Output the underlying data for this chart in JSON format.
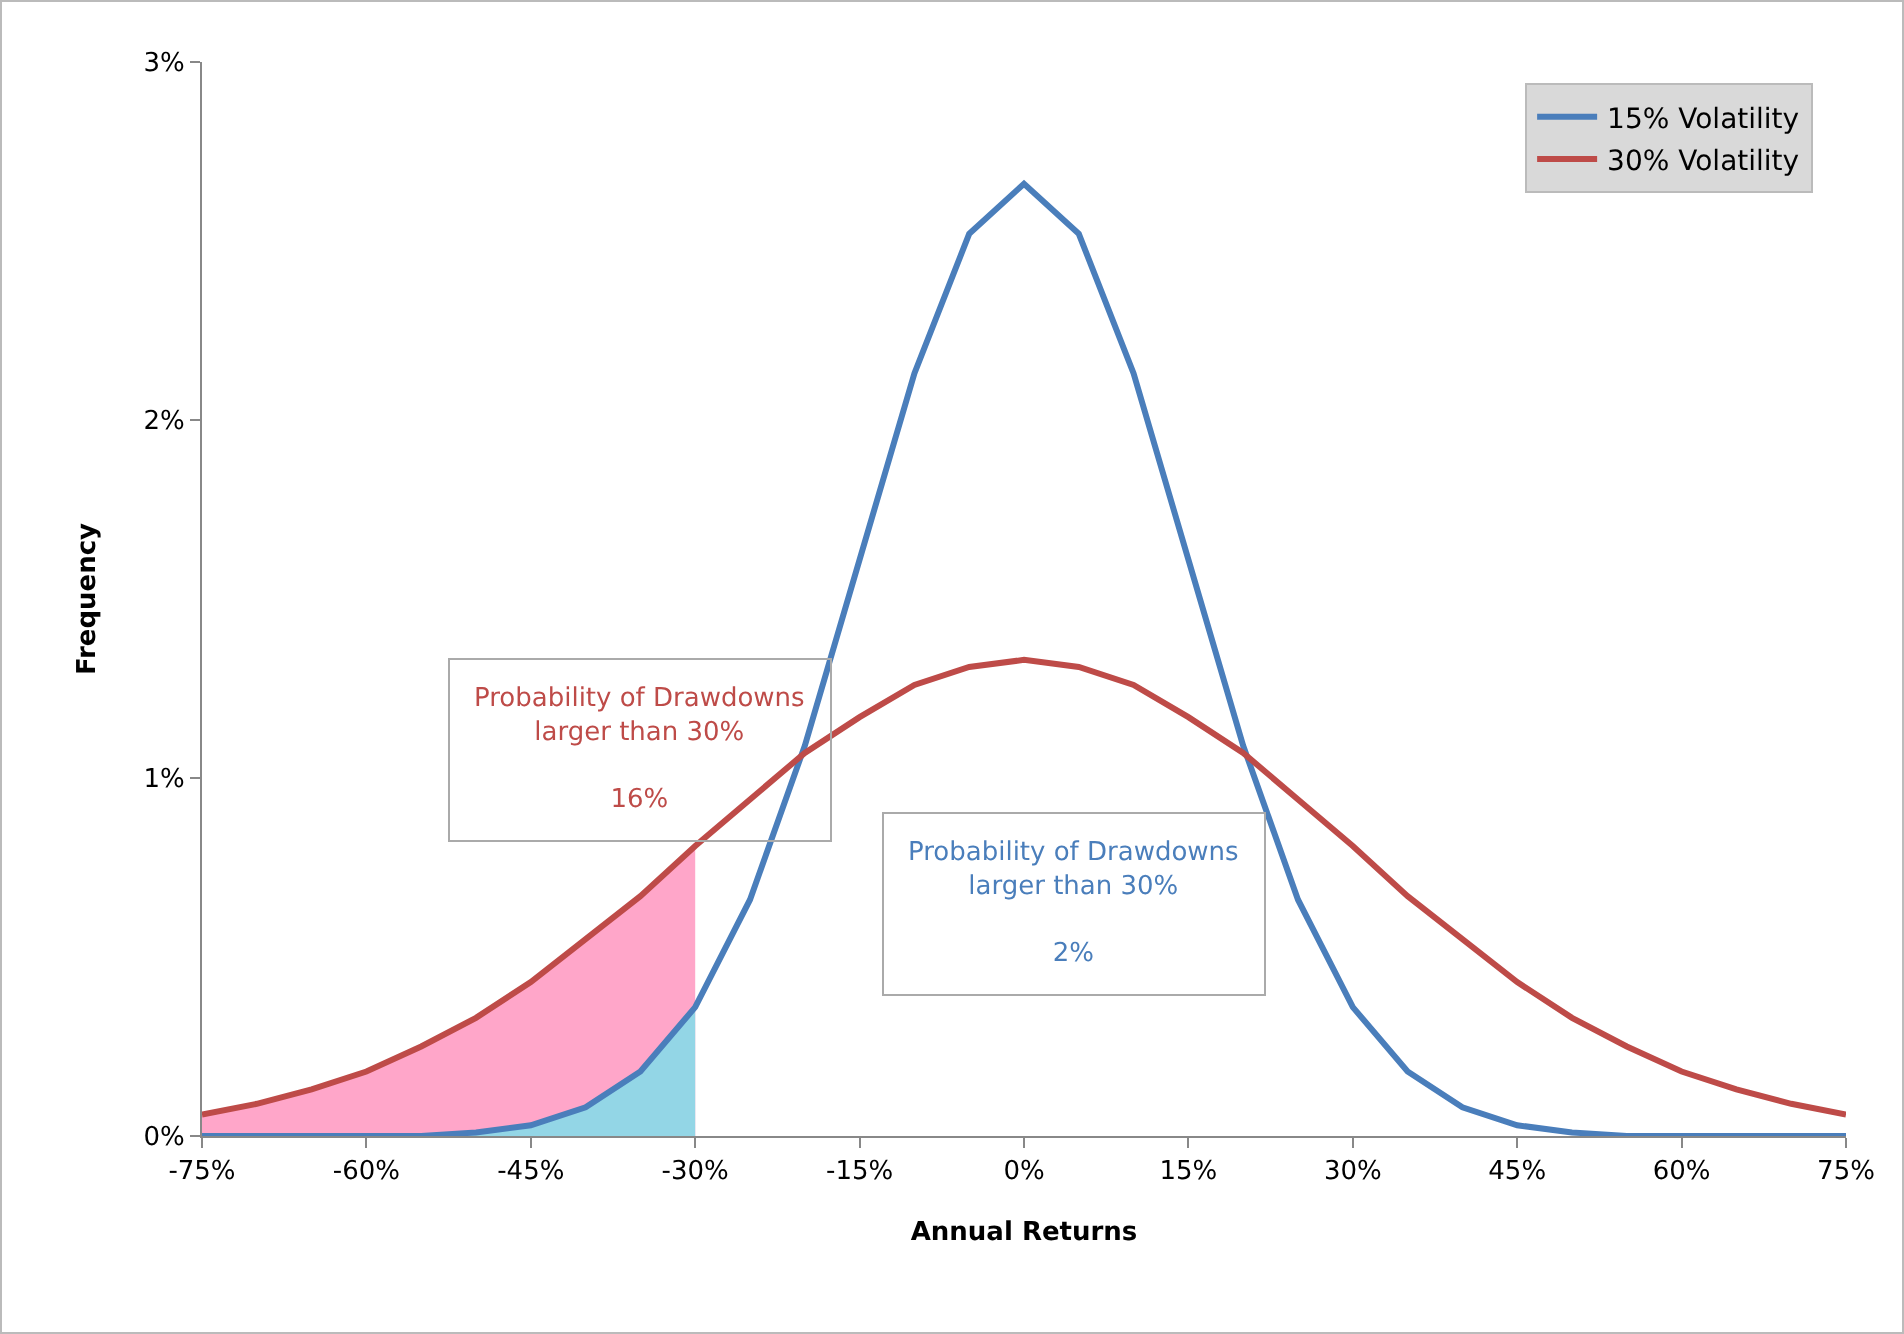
{
  "chart_data": {
    "type": "line",
    "xlabel": "Annual Returns",
    "ylabel": "Frequency",
    "x": [
      -75,
      -70,
      -65,
      -60,
      -55,
      -50,
      -45,
      -40,
      -35,
      -30,
      -25,
      -20,
      -15,
      -10,
      -5,
      0,
      5,
      10,
      15,
      20,
      25,
      30,
      35,
      40,
      45,
      50,
      55,
      60,
      65,
      70,
      75
    ],
    "series": [
      {
        "name": "15% Volatility",
        "color": "#4a7ebb",
        "values": [
          0,
          0,
          0,
          0,
          0,
          0.01,
          0.03,
          0.08,
          0.18,
          0.36,
          0.66,
          1.09,
          1.61,
          2.13,
          2.52,
          2.66,
          2.52,
          2.13,
          1.61,
          1.09,
          0.66,
          0.36,
          0.18,
          0.08,
          0.03,
          0.01,
          0,
          0,
          0,
          0,
          0
        ]
      },
      {
        "name": "30% Volatility",
        "color": "#be4b48",
        "values": [
          0.06,
          0.09,
          0.13,
          0.18,
          0.25,
          0.33,
          0.43,
          0.55,
          0.67,
          0.81,
          0.94,
          1.07,
          1.17,
          1.26,
          1.31,
          1.33,
          1.31,
          1.26,
          1.17,
          1.07,
          0.94,
          0.81,
          0.67,
          0.55,
          0.43,
          0.33,
          0.25,
          0.18,
          0.13,
          0.09,
          0.06
        ]
      },
      {
        "type": "area",
        "color": "#ffa6c9",
        "x": [
          -75,
          -70,
          -65,
          -60,
          -55,
          -50,
          -45,
          -40,
          -35,
          -30
        ],
        "values": [
          0.06,
          0.09,
          0.13,
          0.18,
          0.25,
          0.33,
          0.43,
          0.55,
          0.67,
          0.81
        ]
      },
      {
        "type": "area",
        "color": "#93d6e6",
        "x": [
          -75,
          -70,
          -65,
          -60,
          -55,
          -50,
          -45,
          -40,
          -35,
          -30
        ],
        "values": [
          0,
          0,
          0,
          0,
          0,
          0.01,
          0.03,
          0.08,
          0.18,
          0.36
        ]
      }
    ],
    "xlim": [
      -75,
      75
    ],
    "xticks": [
      {
        "value": -75,
        "label": "-75%"
      },
      {
        "value": -60,
        "label": "-60%"
      },
      {
        "value": -45,
        "label": "-45%"
      },
      {
        "value": -30,
        "label": "-30%"
      },
      {
        "value": -15,
        "label": "-15%"
      },
      {
        "value": 0,
        "label": "0%"
      },
      {
        "value": 15,
        "label": "15%"
      },
      {
        "value": 30,
        "label": "30%"
      },
      {
        "value": 45,
        "label": "45%"
      },
      {
        "value": 60,
        "label": "60%"
      },
      {
        "value": 75,
        "label": "75%"
      }
    ],
    "ylim": [
      0,
      3
    ],
    "yticks": [
      {
        "value": 0,
        "label": "0%"
      },
      {
        "value": 1,
        "label": "1%"
      },
      {
        "value": 2,
        "label": "2%"
      },
      {
        "value": 3,
        "label": "3%"
      }
    ],
    "annotations": [
      "Probability of Drawdowns\nlarger than 30%\n\n16%",
      "Probability of Drawdowns\nlarger than 30%\n\n2%"
    ],
    "grid": false,
    "legend": "top right",
    "line_style": "solid",
    "marker": "none"
  }
}
